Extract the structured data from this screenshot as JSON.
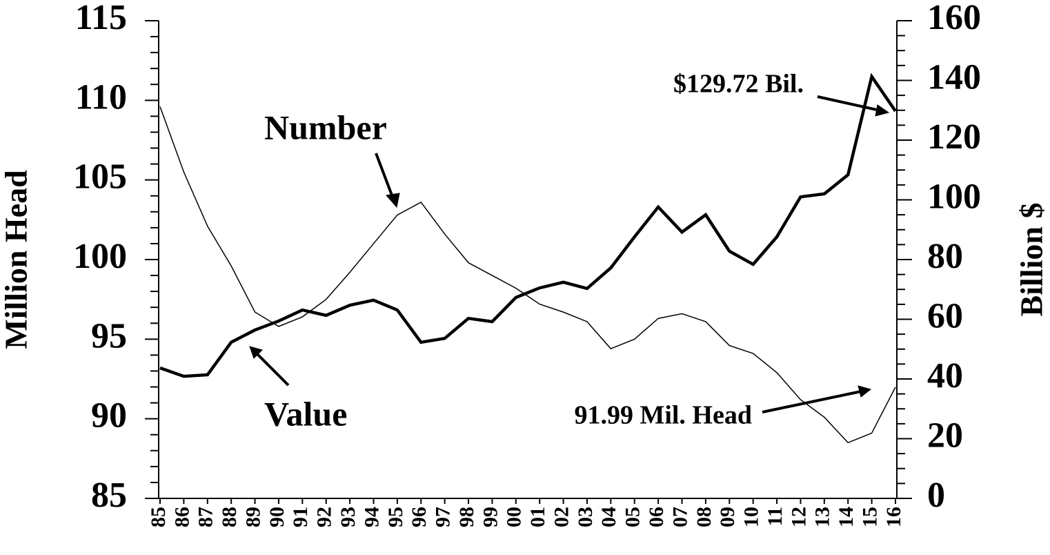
{
  "chart_data": {
    "type": "line",
    "y_label": "Million Head",
    "y2_label": "Billion $",
    "categories": [
      "85",
      "86",
      "87",
      "88",
      "89",
      "90",
      "91",
      "92",
      "93",
      "94",
      "95",
      "96",
      "97",
      "98",
      "99",
      "00",
      "01",
      "02",
      "03",
      "04",
      "05",
      "06",
      "07",
      "08",
      "09",
      "10",
      "11",
      "12",
      "13",
      "14",
      "15",
      "16"
    ],
    "series": [
      {
        "name": "Number",
        "color": "#000000",
        "width": 1.5,
        "values": [
          109.6,
          105.5,
          102.1,
          99.6,
          96.7,
          95.8,
          96.4,
          97.5,
          99.2,
          101.0,
          102.8,
          103.6,
          101.6,
          99.8,
          99.0,
          98.2,
          97.2,
          96.7,
          96.1,
          94.4,
          95.0,
          96.3,
          96.6,
          96.1,
          94.6,
          94.1,
          92.9,
          91.2,
          90.1,
          88.5,
          89.1,
          91.99
        ]
      },
      {
        "name": "Value",
        "color": "#000000",
        "width": 4.5,
        "axis": "y2",
        "values": [
          43.7,
          40.9,
          41.4,
          52.3,
          56.4,
          59.4,
          63.1,
          61.3,
          64.7,
          66.4,
          63.1,
          52.3,
          53.6,
          60.3,
          59.2,
          67.3,
          70.5,
          72.4,
          70.3,
          77.2,
          87.6,
          97.6,
          89.2,
          95.0,
          82.8,
          78.4,
          87.6,
          101.0,
          102.0,
          108.4,
          141.3,
          129.72
        ]
      }
    ],
    "annotations": [
      "$129.72 Bil.",
      "91.99 Mil. Head"
    ],
    "ylim": [
      85,
      115
    ],
    "yticks": [
      85,
      90,
      95,
      100,
      105,
      110,
      115
    ],
    "y2lim": [
      0,
      160
    ],
    "y2ticks": [
      0,
      20,
      40,
      60,
      80,
      100,
      120,
      140,
      160
    ],
    "grid": false
  }
}
